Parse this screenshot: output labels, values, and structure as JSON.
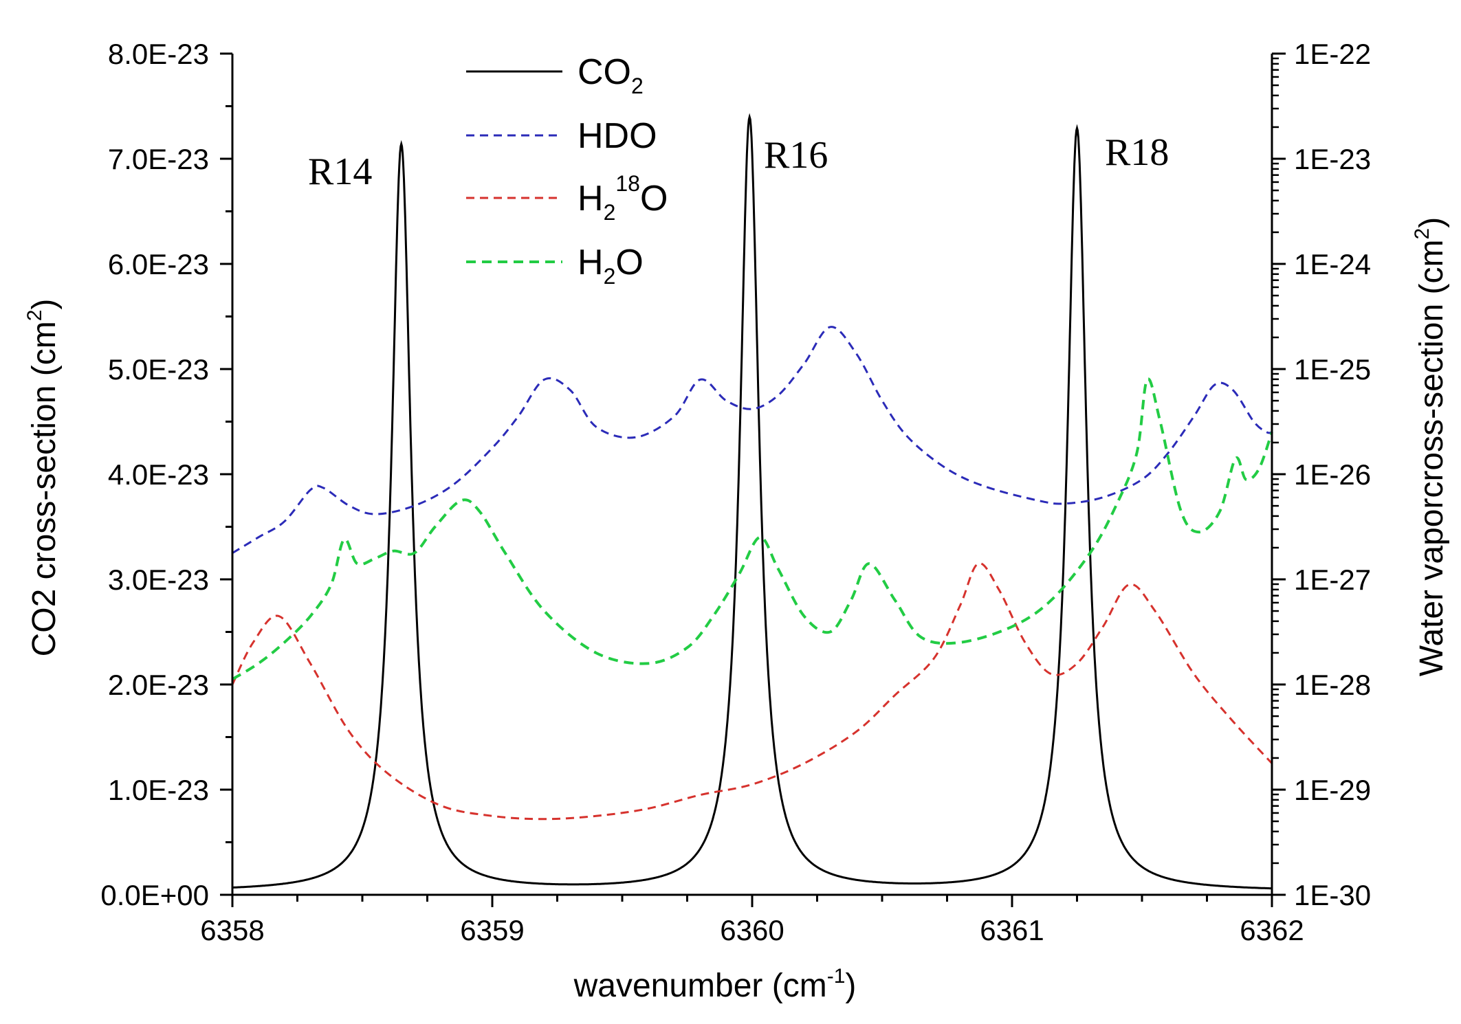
{
  "chart_data": {
    "type": "line",
    "xlabel": "wavenumber (cm",
    "xlabel_sup": "-1",
    "xlabel_close": ")",
    "ylabel_left": "CO2 cross-section (cm",
    "ylabel_left_sup": "2",
    "ylabel_left_close": ")",
    "ylabel_right": "Water vaporcross-section (cm",
    "ylabel_right_sup": "2",
    "ylabel_right_close": ")",
    "xlim": [
      6358,
      6362
    ],
    "ylim_left": [
      0,
      8e-23
    ],
    "ylim_right_log10": [
      -30,
      -22
    ],
    "x_ticks": [
      6358,
      6359,
      6360,
      6361,
      6362
    ],
    "x_tick_labels": [
      "6358",
      "6359",
      "6360",
      "6361",
      "6362"
    ],
    "y_left_ticks": [
      0,
      1e-23,
      2e-23,
      3e-23,
      4e-23,
      5e-23,
      6e-23,
      7e-23,
      8e-23
    ],
    "y_left_tick_labels": [
      "0.0E+00",
      "1.0E-23",
      "2.0E-23",
      "3.0E-23",
      "4.0E-23",
      "5.0E-23",
      "6.0E-23",
      "7.0E-23",
      "8.0E-23"
    ],
    "y_right_ticks_log10": [
      -30,
      -29,
      -28,
      -27,
      -26,
      -25,
      -24,
      -23,
      -22
    ],
    "y_right_tick_labels": [
      "1E-30",
      "1E-29",
      "1E-28",
      "1E-27",
      "1E-26",
      "1E-25",
      "1E-24",
      "1E-23",
      "1E-22"
    ],
    "peak_labels": [
      {
        "text": "R14",
        "x": 6358.5,
        "y": 6.8e-23
      },
      {
        "text": "R16",
        "x": 6360.2,
        "y": 7e-23
      },
      {
        "text": "R18",
        "x": 6361.5,
        "y": 7e-23
      }
    ],
    "series": [
      {
        "name": "CO2",
        "legend_main": "CO",
        "legend_sub": "2",
        "axis": "left",
        "color": "#000000",
        "dash": "solid",
        "peaks": [
          {
            "center": 6358.65,
            "height": 7.1e-23
          },
          {
            "center": 6359.99,
            "height": 7.35e-23
          },
          {
            "center": 6361.25,
            "height": 7.25e-23
          }
        ],
        "hwhm": 0.045,
        "baseline": 1e-24
      },
      {
        "name": "HDO",
        "legend_main": "HDO",
        "axis": "right",
        "color": "#2b2bb8",
        "dash": "dashed",
        "points": [
          [
            6358.0,
            -26.75
          ],
          [
            6358.1,
            -26.6
          ],
          [
            6358.2,
            -26.45
          ],
          [
            6358.3,
            -26.15
          ],
          [
            6358.35,
            -26.13
          ],
          [
            6358.45,
            -26.3
          ],
          [
            6358.55,
            -26.38
          ],
          [
            6358.7,
            -26.3
          ],
          [
            6358.85,
            -26.1
          ],
          [
            6359.0,
            -25.75
          ],
          [
            6359.1,
            -25.45
          ],
          [
            6359.2,
            -25.1
          ],
          [
            6359.3,
            -25.2
          ],
          [
            6359.4,
            -25.55
          ],
          [
            6359.55,
            -25.65
          ],
          [
            6359.7,
            -25.45
          ],
          [
            6359.8,
            -25.1
          ],
          [
            6359.9,
            -25.3
          ],
          [
            6360.0,
            -25.38
          ],
          [
            6360.1,
            -25.25
          ],
          [
            6360.2,
            -24.95
          ],
          [
            6360.3,
            -24.6
          ],
          [
            6360.4,
            -24.85
          ],
          [
            6360.5,
            -25.3
          ],
          [
            6360.6,
            -25.65
          ],
          [
            6360.75,
            -25.95
          ],
          [
            6360.9,
            -26.12
          ],
          [
            6361.1,
            -26.25
          ],
          [
            6361.2,
            -26.28
          ],
          [
            6361.35,
            -26.22
          ],
          [
            6361.5,
            -26.05
          ],
          [
            6361.6,
            -25.8
          ],
          [
            6361.7,
            -25.45
          ],
          [
            6361.78,
            -25.15
          ],
          [
            6361.85,
            -25.2
          ],
          [
            6361.93,
            -25.5
          ],
          [
            6361.98,
            -25.6
          ],
          [
            6362.0,
            -25.6
          ]
        ]
      },
      {
        "name": "H2 18O",
        "legend_main": "H",
        "legend_sub": "2",
        "legend_sup": "18",
        "legend_tail": "O",
        "axis": "right",
        "color": "#d6322d",
        "dash": "dashed",
        "points": [
          [
            6358.0,
            -28.0
          ],
          [
            6358.08,
            -27.6
          ],
          [
            6358.18,
            -27.35
          ],
          [
            6358.3,
            -27.8
          ],
          [
            6358.45,
            -28.45
          ],
          [
            6358.6,
            -28.85
          ],
          [
            6358.8,
            -29.15
          ],
          [
            6359.0,
            -29.25
          ],
          [
            6359.2,
            -29.28
          ],
          [
            6359.4,
            -29.25
          ],
          [
            6359.6,
            -29.18
          ],
          [
            6359.8,
            -29.05
          ],
          [
            6360.0,
            -28.95
          ],
          [
            6360.2,
            -28.75
          ],
          [
            6360.4,
            -28.45
          ],
          [
            6360.55,
            -28.1
          ],
          [
            6360.7,
            -27.75
          ],
          [
            6360.8,
            -27.25
          ],
          [
            6360.87,
            -26.85
          ],
          [
            6360.95,
            -27.1
          ],
          [
            6361.05,
            -27.6
          ],
          [
            6361.15,
            -27.9
          ],
          [
            6361.25,
            -27.8
          ],
          [
            6361.35,
            -27.45
          ],
          [
            6361.45,
            -27.05
          ],
          [
            6361.55,
            -27.3
          ],
          [
            6361.7,
            -27.9
          ],
          [
            6361.85,
            -28.35
          ],
          [
            6362.0,
            -28.75
          ]
        ]
      },
      {
        "name": "H2O",
        "legend_main": "H",
        "legend_sub": "2",
        "legend_tail": "O",
        "axis": "right",
        "color": "#22cc44",
        "dash": "dashed",
        "points": [
          [
            6358.0,
            -27.95
          ],
          [
            6358.1,
            -27.8
          ],
          [
            6358.2,
            -27.6
          ],
          [
            6358.3,
            -27.35
          ],
          [
            6358.38,
            -27.05
          ],
          [
            6358.43,
            -26.62
          ],
          [
            6358.48,
            -26.85
          ],
          [
            6358.55,
            -26.8
          ],
          [
            6358.62,
            -26.73
          ],
          [
            6358.7,
            -26.75
          ],
          [
            6358.78,
            -26.5
          ],
          [
            6358.88,
            -26.25
          ],
          [
            6358.95,
            -26.35
          ],
          [
            6359.05,
            -26.75
          ],
          [
            6359.2,
            -27.3
          ],
          [
            6359.4,
            -27.7
          ],
          [
            6359.6,
            -27.8
          ],
          [
            6359.75,
            -27.65
          ],
          [
            6359.85,
            -27.35
          ],
          [
            6359.95,
            -26.95
          ],
          [
            6360.03,
            -26.6
          ],
          [
            6360.1,
            -26.9
          ],
          [
            6360.2,
            -27.35
          ],
          [
            6360.3,
            -27.5
          ],
          [
            6360.38,
            -27.2
          ],
          [
            6360.45,
            -26.85
          ],
          [
            6360.55,
            -27.2
          ],
          [
            6360.65,
            -27.55
          ],
          [
            6360.8,
            -27.6
          ],
          [
            6361.0,
            -27.45
          ],
          [
            6361.15,
            -27.2
          ],
          [
            6361.3,
            -26.75
          ],
          [
            6361.4,
            -26.3
          ],
          [
            6361.48,
            -25.8
          ],
          [
            6361.52,
            -25.1
          ],
          [
            6361.57,
            -25.5
          ],
          [
            6361.65,
            -26.35
          ],
          [
            6361.72,
            -26.55
          ],
          [
            6361.8,
            -26.35
          ],
          [
            6361.86,
            -25.85
          ],
          [
            6361.9,
            -26.05
          ],
          [
            6361.95,
            -25.95
          ],
          [
            6362.0,
            -25.6
          ]
        ]
      }
    ]
  }
}
